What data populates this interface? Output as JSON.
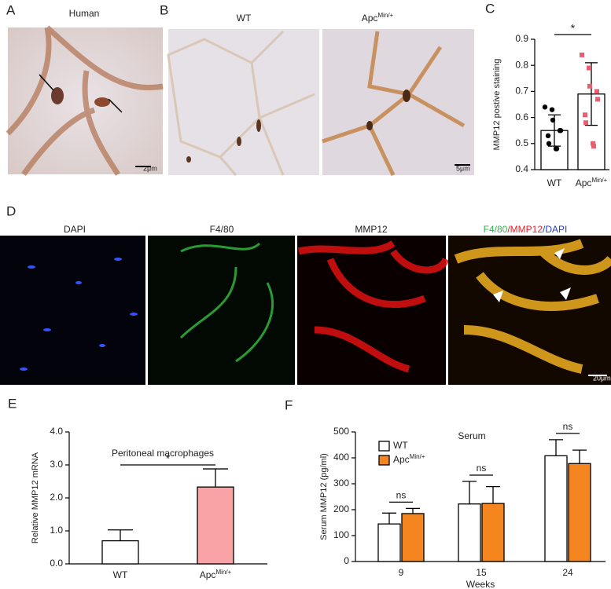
{
  "panels": {
    "A": {
      "letter": "A",
      "title": "Human",
      "scale_bar": "2μm"
    },
    "B": {
      "letter": "B",
      "titles": [
        "WT",
        "Apc"
      ],
      "title_superscripts": [
        null,
        "Min/+"
      ],
      "scale_bar": "5μm"
    },
    "D": {
      "letter": "D",
      "titles": [
        "DAPI",
        "F4/80",
        "MMP12"
      ],
      "merge_title": [
        {
          "text": "F4/80",
          "color": "#2db34a"
        },
        {
          "text": "/MMP12",
          "color": "#e8202a"
        },
        {
          "text": "/DAPI",
          "color": "#2c3fb8"
        }
      ],
      "scale_bar": "20μm"
    }
  },
  "chart_data": [
    {
      "type": "bar",
      "letter": "C",
      "ylabel": "MMP12 postive staining",
      "categories": [
        "WT",
        "Apc"
      ],
      "category_superscripts": [
        null,
        "Min/+"
      ],
      "values": [
        0.55,
        0.69
      ],
      "errors": [
        0.06,
        0.12
      ],
      "colors": [
        "#ffffff",
        "#ffffff"
      ],
      "point_colors": [
        "#000000",
        "#e8606f"
      ],
      "points": [
        [
          0.64,
          0.63,
          0.59,
          0.55,
          0.55,
          0.53,
          0.5,
          0.48,
          0.48
        ],
        [
          0.84,
          0.79,
          0.72,
          0.7,
          0.67,
          0.61,
          0.58,
          0.5,
          0.49
        ]
      ],
      "ylim": [
        0.4,
        0.9
      ],
      "yticks": [
        0.4,
        0.5,
        0.6,
        0.7,
        0.8,
        0.9
      ],
      "annotation": "*"
    },
    {
      "type": "bar",
      "letter": "E",
      "title": "Peritoneal macrophages",
      "ylabel": "Relative MMP12 mRNA",
      "categories": [
        "WT",
        "Apc"
      ],
      "category_superscripts": [
        null,
        "Min/+"
      ],
      "values": [
        0.7,
        2.33
      ],
      "errors": [
        0.33,
        0.55
      ],
      "colors": [
        "#ffffff",
        "#f9a3a6"
      ],
      "ylim": [
        0,
        4
      ],
      "yticks": [
        {
          "value": 0,
          "label": "0.0"
        },
        {
          "value": 1,
          "label": "1.0"
        },
        {
          "value": 2,
          "label": "2.0"
        },
        {
          "value": 3,
          "label": "3.0"
        },
        {
          "value": 4,
          "label": "4.0"
        }
      ],
      "annotation": "*"
    },
    {
      "type": "grouped_bar",
      "letter": "F",
      "title": "Serum",
      "ylabel": "Serum MMP12 (pg/ml)",
      "xlabel": "Weeks",
      "categories": [
        "9",
        "15",
        "24"
      ],
      "series": [
        {
          "name": "WT",
          "name_superscript": null,
          "color": "#ffffff",
          "values": [
            145,
            222,
            408
          ],
          "errors": [
            42,
            87,
            62
          ]
        },
        {
          "name": "Apc",
          "name_superscript": "Min/+",
          "color": "#f5861f",
          "values": [
            185,
            224,
            378
          ],
          "errors": [
            20,
            65,
            52
          ]
        }
      ],
      "ylim": [
        0,
        500
      ],
      "yticks": [
        0,
        100,
        200,
        300,
        400,
        500
      ],
      "annotations": [
        "ns",
        "ns",
        "ns"
      ]
    }
  ]
}
